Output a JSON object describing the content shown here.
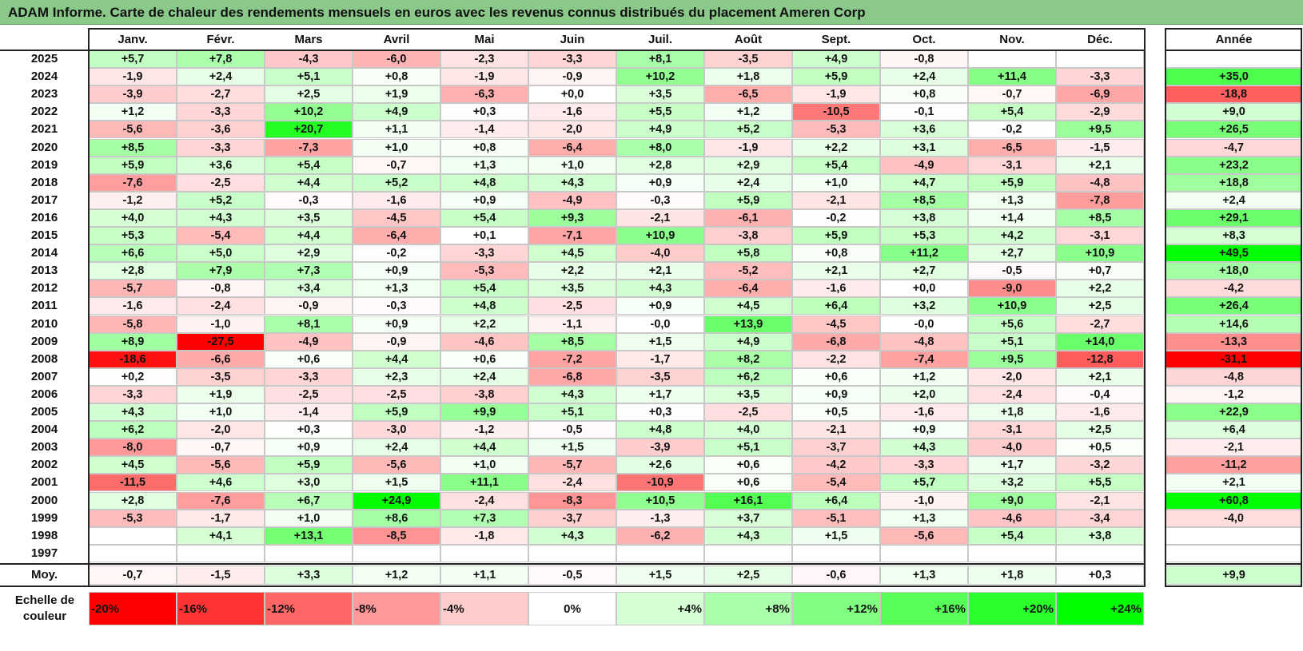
{
  "title": "ADAM Informe. Carte de chaleur des rendements mensuels en euros avec les revenus connus distribués du placement Ameren Corp",
  "months": [
    "Janv.",
    "Févr.",
    "Mars",
    "Avril",
    "Mai",
    "Juin",
    "Juil.",
    "Août",
    "Sept.",
    "Oct.",
    "Nov.",
    "Déc."
  ],
  "year_header": "Année",
  "average_label": "Moy.",
  "scale_label": "Echelle de couleur",
  "colors": {
    "negative_max": "#ff0000",
    "neutral": "#ffffff",
    "positive_max": "#00ff00",
    "title_bar": "#8ac98a"
  },
  "chart_data": {
    "type": "heatmap",
    "title": "ADAM Informe. Carte de chaleur des rendements mensuels en euros avec les revenus connus distribués du placement Ameren Corp",
    "columns": [
      "Janv.",
      "Févr.",
      "Mars",
      "Avril",
      "Mai",
      "Juin",
      "Juil.",
      "Août",
      "Sept.",
      "Oct.",
      "Nov.",
      "Déc."
    ],
    "rows": [
      {
        "year": "2025",
        "values": [
          "+5,7",
          "+7,8",
          "-4,3",
          "-6,0",
          "-2,3",
          "-3,3",
          "+8,1",
          "-3,5",
          "+4,9",
          "-0,8",
          "",
          ""
        ],
        "annual": ""
      },
      {
        "year": "2024",
        "values": [
          "-1,9",
          "+2,4",
          "+5,1",
          "+0,8",
          "-1,9",
          "-0,9",
          "+10,2",
          "+1,8",
          "+5,9",
          "+2,4",
          "+11,4",
          "-3,3"
        ],
        "annual": "+35,0"
      },
      {
        "year": "2023",
        "values": [
          "-3,9",
          "-2,7",
          "+2,5",
          "+1,9",
          "-6,3",
          "+0,0",
          "+3,5",
          "-6,5",
          "-1,9",
          "+0,8",
          "-0,7",
          "-6,9"
        ],
        "annual": "-18,8"
      },
      {
        "year": "2022",
        "values": [
          "+1,2",
          "-3,3",
          "+10,2",
          "+4,9",
          "+0,3",
          "-1,6",
          "+5,5",
          "+1,2",
          "-10,5",
          "-0,1",
          "+5,4",
          "-2,9"
        ],
        "annual": "+9,0"
      },
      {
        "year": "2021",
        "values": [
          "-5,6",
          "-3,6",
          "+20,7",
          "+1,1",
          "-1,4",
          "-2,0",
          "+4,9",
          "+5,2",
          "-5,3",
          "+3,6",
          "-0,2",
          "+9,5"
        ],
        "annual": "+26,5"
      },
      {
        "year": "2020",
        "values": [
          "+8,5",
          "-3,3",
          "-7,3",
          "+1,0",
          "+0,8",
          "-6,4",
          "+8,0",
          "-1,9",
          "+2,2",
          "+3,1",
          "-6,5",
          "-1,5"
        ],
        "annual": "-4,7"
      },
      {
        "year": "2019",
        "values": [
          "+5,9",
          "+3,6",
          "+5,4",
          "-0,7",
          "+1,3",
          "+1,0",
          "+2,8",
          "+2,9",
          "+5,4",
          "-4,9",
          "-3,1",
          "+2,1"
        ],
        "annual": "+23,2"
      },
      {
        "year": "2018",
        "values": [
          "-7,6",
          "-2,5",
          "+4,4",
          "+5,2",
          "+4,8",
          "+4,3",
          "+0,9",
          "+2,4",
          "+1,0",
          "+4,7",
          "+5,9",
          "-4,8"
        ],
        "annual": "+18,8"
      },
      {
        "year": "2017",
        "values": [
          "-1,2",
          "+5,2",
          "-0,3",
          "-1,6",
          "+0,9",
          "-4,9",
          "-0,3",
          "+5,9",
          "-2,1",
          "+8,5",
          "+1,3",
          "-7,8"
        ],
        "annual": "+2,4"
      },
      {
        "year": "2016",
        "values": [
          "+4,0",
          "+4,3",
          "+3,5",
          "-4,5",
          "+5,4",
          "+9,3",
          "-2,1",
          "-6,1",
          "-0,2",
          "+3,8",
          "+1,4",
          "+8,5"
        ],
        "annual": "+29,1"
      },
      {
        "year": "2015",
        "values": [
          "+5,3",
          "-5,4",
          "+4,4",
          "-6,4",
          "+0,1",
          "-7,1",
          "+10,9",
          "-3,8",
          "+5,9",
          "+5,3",
          "+4,2",
          "-3,1"
        ],
        "annual": "+8,3"
      },
      {
        "year": "2014",
        "values": [
          "+6,6",
          "+5,0",
          "+2,9",
          "-0,2",
          "-3,3",
          "+4,5",
          "-4,0",
          "+5,8",
          "+0,8",
          "+11,2",
          "+2,7",
          "+10,9"
        ],
        "annual": "+49,5"
      },
      {
        "year": "2013",
        "values": [
          "+2,8",
          "+7,9",
          "+7,3",
          "+0,9",
          "-5,3",
          "+2,2",
          "+2,1",
          "-5,2",
          "+2,1",
          "+2,7",
          "-0,5",
          "+0,7"
        ],
        "annual": "+18,0"
      },
      {
        "year": "2012",
        "values": [
          "-5,7",
          "-0,8",
          "+3,4",
          "+1,3",
          "+5,4",
          "+3,5",
          "+4,3",
          "-6,4",
          "-1,6",
          "+0,0",
          "-9,0",
          "+2,2"
        ],
        "annual": "-4,2"
      },
      {
        "year": "2011",
        "values": [
          "-1,6",
          "-2,4",
          "-0,9",
          "-0,3",
          "+4,8",
          "-2,5",
          "+0,9",
          "+4,5",
          "+6,4",
          "+3,2",
          "+10,9",
          "+2,5"
        ],
        "annual": "+26,4"
      },
      {
        "year": "2010",
        "values": [
          "-5,8",
          "-1,0",
          "+8,1",
          "+0,9",
          "+2,2",
          "-1,1",
          "-0,0",
          "+13,9",
          "-4,5",
          "-0,0",
          "+5,6",
          "-2,7"
        ],
        "annual": "+14,6"
      },
      {
        "year": "2009",
        "values": [
          "+8,9",
          "-27,5",
          "-4,9",
          "-0,9",
          "-4,6",
          "+8,5",
          "+1,5",
          "+4,9",
          "-6,8",
          "-4,8",
          "+5,1",
          "+14,0"
        ],
        "annual": "-13,3"
      },
      {
        "year": "2008",
        "values": [
          "-18,6",
          "-6,6",
          "+0,6",
          "+4,4",
          "+0,6",
          "-7,2",
          "-1,7",
          "+8,2",
          "-2,2",
          "-7,4",
          "+9,5",
          "-12,8"
        ],
        "annual": "-31,1"
      },
      {
        "year": "2007",
        "values": [
          "+0,2",
          "-3,5",
          "-3,3",
          "+2,3",
          "+2,4",
          "-6,8",
          "-3,5",
          "+6,2",
          "+0,6",
          "+1,2",
          "-2,0",
          "+2,1"
        ],
        "annual": "-4,8"
      },
      {
        "year": "2006",
        "values": [
          "-3,3",
          "+1,9",
          "-2,5",
          "-2,5",
          "-3,8",
          "+4,3",
          "+1,7",
          "+3,5",
          "+0,9",
          "+2,0",
          "-2,4",
          "-0,4"
        ],
        "annual": "-1,2"
      },
      {
        "year": "2005",
        "values": [
          "+4,3",
          "+1,0",
          "-1,4",
          "+5,9",
          "+9,9",
          "+5,1",
          "+0,3",
          "-2,5",
          "+0,5",
          "-1,6",
          "+1,8",
          "-1,6"
        ],
        "annual": "+22,9"
      },
      {
        "year": "2004",
        "values": [
          "+6,2",
          "-2,0",
          "+0,3",
          "-3,0",
          "-1,2",
          "-0,5",
          "+4,8",
          "+4,0",
          "-2,1",
          "+0,9",
          "-3,1",
          "+2,5"
        ],
        "annual": "+6,4"
      },
      {
        "year": "2003",
        "values": [
          "-8,0",
          "-0,7",
          "+0,9",
          "+2,4",
          "+4,4",
          "+1,5",
          "-3,9",
          "+5,1",
          "-3,7",
          "+4,3",
          "-4,0",
          "+0,5"
        ],
        "annual": "-2,1"
      },
      {
        "year": "2002",
        "values": [
          "+4,5",
          "-5,6",
          "+5,9",
          "-5,6",
          "+1,0",
          "-5,7",
          "+2,6",
          "+0,6",
          "-4,2",
          "-3,3",
          "+1,7",
          "-3,2"
        ],
        "annual": "-11,2"
      },
      {
        "year": "2001",
        "values": [
          "-11,5",
          "+4,6",
          "+3,0",
          "+1,5",
          "+11,1",
          "-2,4",
          "-10,9",
          "+0,6",
          "-5,4",
          "+5,7",
          "+3,2",
          "+5,5"
        ],
        "annual": "+2,1"
      },
      {
        "year": "2000",
        "values": [
          "+2,8",
          "-7,6",
          "+6,7",
          "+24,9",
          "-2,4",
          "-8,3",
          "+10,5",
          "+16,1",
          "+6,4",
          "-1,0",
          "+9,0",
          "-2,1"
        ],
        "annual": "+60,8"
      },
      {
        "year": "1999",
        "values": [
          "-5,3",
          "-1,7",
          "+1,0",
          "+8,6",
          "+7,3",
          "-3,7",
          "-1,3",
          "+3,7",
          "-5,1",
          "+1,3",
          "-4,6",
          "-3,4"
        ],
        "annual": "-4,0"
      },
      {
        "year": "1998",
        "values": [
          "",
          "+4,1",
          "+13,1",
          "-8,5",
          "-1,8",
          "+4,3",
          "-6,2",
          "+4,3",
          "+1,5",
          "-5,6",
          "+5,4",
          "+3,8"
        ],
        "annual": ""
      },
      {
        "year": "1997",
        "values": [
          "",
          "",
          "",
          "",
          "",
          "",
          "",
          "",
          "",
          "",
          "",
          ""
        ],
        "annual": ""
      }
    ],
    "average": {
      "values": [
        "-0,7",
        "-1,5",
        "+3,3",
        "+1,2",
        "+1,1",
        "-0,5",
        "+1,5",
        "+2,5",
        "-0,6",
        "+1,3",
        "+1,8",
        "+0,3"
      ],
      "annual": "+9,9"
    },
    "color_scale": [
      "-20%",
      "-16%",
      "-12%",
      "-8%",
      "-4%",
      "0%",
      "+4%",
      "+8%",
      "+12%",
      "+16%",
      "+20%",
      "+24%"
    ],
    "color_scale_values": [
      -20,
      -16,
      -12,
      -8,
      -4,
      0,
      4,
      8,
      12,
      16,
      20,
      24
    ]
  }
}
